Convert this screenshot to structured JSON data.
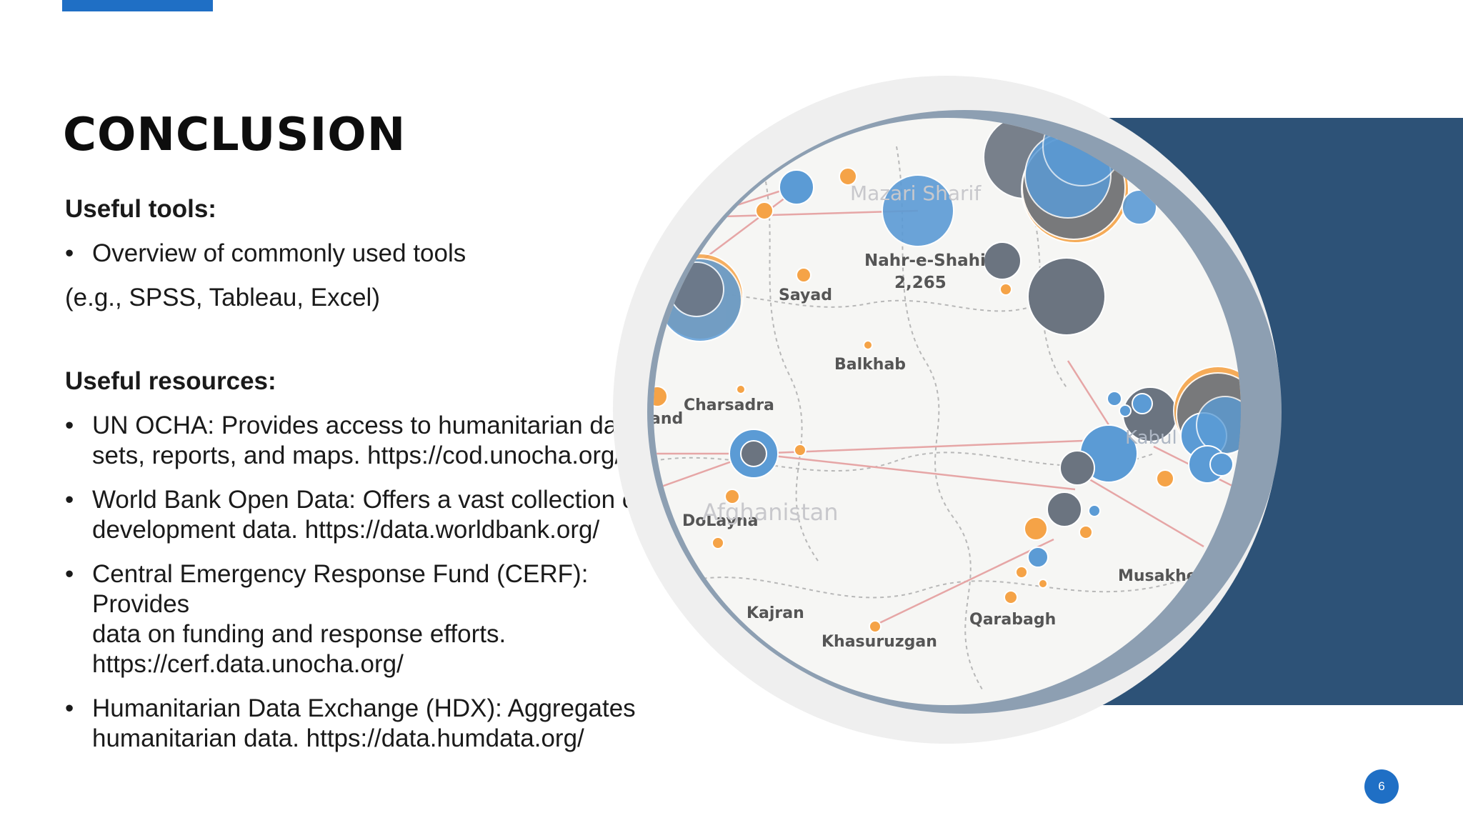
{
  "slide": {
    "title": "CONCLUSION",
    "page_number": "6",
    "accent_color": "#1f6fc5",
    "panel_color": "#2d5277"
  },
  "tools": {
    "heading": "Useful tools:",
    "bullets": [
      "Overview of commonly used tools"
    ],
    "note": "(e.g., SPSS, Tableau, Excel)"
  },
  "resources": {
    "heading": "Useful resources:",
    "items": [
      {
        "lines": [
          "UN OCHA: Provides access to humanitarian data",
          "sets, reports, and maps. https://cod.unocha.org/"
        ]
      },
      {
        "lines": [
          "World Bank Open Data: Offers a vast collection of",
          "development data. https://data.worldbank.org/"
        ]
      },
      {
        "lines": [
          "Central Emergency Response Fund (CERF): Provides",
          "data on funding and response efforts.",
          "https://cerf.data.unocha.org/"
        ]
      },
      {
        "lines": [
          "Humanitarian Data Exchange (HDX): Aggregates",
          "humanitarian data. https://data.humdata.org/"
        ]
      }
    ]
  },
  "map": {
    "labels": {
      "mazari": "Mazari Sharif",
      "nahr": "Nahr-e-Shahi",
      "nahr_value": "2,265",
      "sayad": "Sayad",
      "balkhab": "Balkhab",
      "charsadra": "Charsadra",
      "and": "and",
      "dolayna": "DoLayna",
      "afghanistan": "Afghanistan",
      "kajran": "Kajran",
      "khasuruzgan": "Khasuruzgan",
      "qarabagh": "Qarabagh",
      "musakhel": "Musakhe",
      "kabul": "Kabul"
    },
    "colors": {
      "blue": "#5b9bd5",
      "grey": "#6b7480",
      "orange": "#f5a347",
      "line": "#e6a6a6"
    }
  }
}
